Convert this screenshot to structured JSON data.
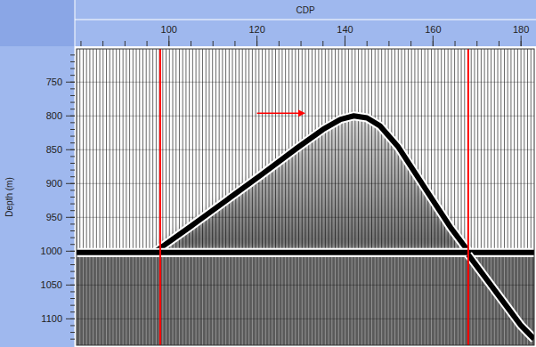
{
  "chart_data": {
    "type": "seismic_section",
    "x_label": "CDP",
    "y_label": "Depth (m)",
    "xlim": [
      79,
      183
    ],
    "xticks": [
      100,
      120,
      140,
      160,
      180
    ],
    "ylim": [
      701,
      1139
    ],
    "yticks": [
      750,
      800,
      850,
      900,
      950,
      1000,
      1050,
      1100
    ],
    "grid": true,
    "series": [
      {
        "color": "#000000",
        "x": [
          97,
          105,
          113,
          121,
          129,
          135,
          139,
          142,
          145,
          148,
          152,
          156,
          160,
          164,
          168
        ],
        "values": [
          1000,
          963,
          925,
          887,
          848,
          820,
          805,
          800,
          803,
          815,
          845,
          885,
          925,
          965,
          1000
        ]
      },
      {
        "color": "#000000",
        "x": [
          79,
          183
        ],
        "values": [
          1002,
          1002
        ]
      },
      {
        "color": "#000000",
        "x": [
          168,
          172,
          176,
          180,
          183
        ],
        "values": [
          1005,
          1040,
          1075,
          1110,
          1130
        ]
      }
    ],
    "vertical_lines": [
      98,
      168
    ],
    "arrow": {
      "color": "#ff0000",
      "x": [
        120,
        131
      ],
      "y": [
        796,
        796
      ]
    }
  }
}
